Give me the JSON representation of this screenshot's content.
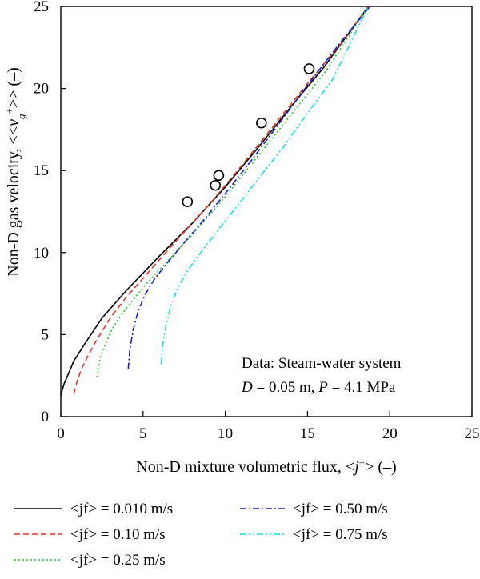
{
  "chart_data": {
    "type": "line",
    "xlabel": "Non-D mixture volumetric flux, <j+> (–)",
    "ylabel": "Non-D gas velocity, <<vg+>> (–)",
    "xlim": [
      0,
      25
    ],
    "ylim": [
      0,
      25
    ],
    "xticks": [
      0,
      5,
      10,
      15,
      20,
      25
    ],
    "yticks": [
      0,
      5,
      10,
      15,
      20,
      25
    ],
    "grid": false,
    "legend_position": "bottom",
    "annotation": {
      "line1": "Data: Steam-water system",
      "line2": "D = 0.05 m, P = 4.1 MPa"
    },
    "series": [
      {
        "name": "<jf> = 0.010 m/s",
        "style": "solid",
        "color": "#000000",
        "x": [
          0.0,
          0.2,
          0.5,
          0.8,
          1.5,
          2.5,
          4.0,
          6.0,
          8.0,
          10.0,
          12.0,
          14.0,
          16.0,
          18.7
        ],
        "y": [
          1.3,
          2.0,
          2.7,
          3.4,
          4.5,
          6.0,
          7.7,
          9.8,
          11.8,
          14.0,
          16.4,
          18.9,
          21.3,
          25.0
        ]
      },
      {
        "name": "<jf> = 0.10 m/s",
        "style": "dashed",
        "color": "#e8302a",
        "x": [
          0.8,
          1.0,
          1.3,
          1.7,
          2.2,
          3.0,
          4.0,
          5.5,
          7.0,
          9.0,
          11.0,
          13.0,
          15.0,
          17.0,
          18.7
        ],
        "y": [
          1.4,
          2.2,
          3.0,
          3.8,
          4.7,
          6.0,
          7.3,
          9.0,
          10.7,
          12.9,
          15.3,
          17.8,
          20.3,
          22.7,
          25.0
        ]
      },
      {
        "name": "<jf> = 0.25 m/s",
        "style": "dotted",
        "color": "#1fc82b",
        "x": [
          2.2,
          2.4,
          2.7,
          3.1,
          3.6,
          4.3,
          5.2,
          6.5,
          8.0,
          10.0,
          12.0,
          14.0,
          16.0,
          18.7
        ],
        "y": [
          2.4,
          3.6,
          4.4,
          5.3,
          6.1,
          7.0,
          8.1,
          9.5,
          11.1,
          13.4,
          15.9,
          18.4,
          20.9,
          25.0
        ]
      },
      {
        "name": "<jf> = 0.50 m/s",
        "style": "dashdot",
        "color": "#1620c8",
        "x": [
          4.1,
          4.2,
          4.4,
          4.7,
          5.1,
          5.7,
          6.5,
          7.5,
          8.7,
          10.0,
          11.5,
          13.0,
          15.0,
          17.0,
          18.8
        ],
        "y": [
          2.9,
          4.1,
          5.3,
          6.4,
          7.4,
          8.4,
          9.4,
          10.6,
          12.0,
          13.6,
          15.5,
          17.5,
          20.2,
          22.8,
          25.0
        ]
      },
      {
        "name": "<jf> = 0.75 m/s",
        "style": "dashdotdot",
        "color": "#15dcee",
        "x": [
          6.1,
          6.2,
          6.4,
          6.7,
          7.1,
          7.7,
          8.5,
          9.5,
          10.7,
          12.0,
          13.5,
          15.0,
          16.5,
          18.7
        ],
        "y": [
          3.2,
          4.4,
          5.6,
          6.8,
          7.8,
          8.9,
          10.0,
          11.3,
          12.8,
          14.5,
          16.4,
          18.5,
          20.5,
          25.0
        ]
      }
    ],
    "markers": {
      "name": "data",
      "symbol": "open-circle",
      "x": [
        7.7,
        9.4,
        9.6,
        12.2,
        15.1
      ],
      "y": [
        13.1,
        14.1,
        14.7,
        17.9,
        21.2
      ]
    }
  }
}
